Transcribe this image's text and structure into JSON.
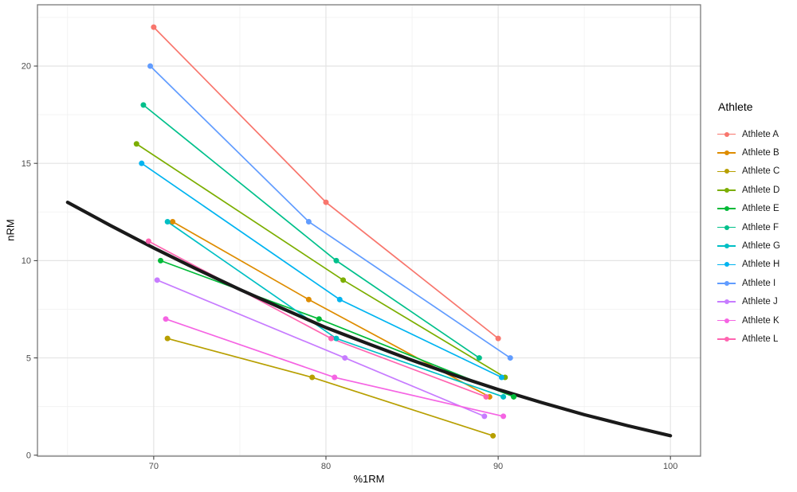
{
  "chart_data": {
    "type": "scatter",
    "title": "",
    "xlabel": "%1RM",
    "ylabel": "nRM",
    "legend_title": "Athlete",
    "legend_position": "right",
    "grid": true,
    "xlim": [
      63.25,
      101.75
    ],
    "ylim": [
      -0.05,
      23.15
    ],
    "x_ticks": [
      70,
      80,
      90,
      100
    ],
    "x_minor_ticks": [
      65,
      75,
      85,
      95
    ],
    "y_ticks": [
      0,
      5,
      10,
      15,
      20
    ],
    "y_minor_ticks": [
      2.5,
      7.5,
      12.5,
      17.5,
      22.5
    ],
    "series": [
      {
        "name": "Athlete A",
        "color": "#F8766D",
        "points": [
          [
            70.0,
            22
          ],
          [
            80.0,
            13
          ],
          [
            90.0,
            6
          ]
        ]
      },
      {
        "name": "Athlete B",
        "color": "#DE8C00",
        "points": [
          [
            71.1,
            12
          ],
          [
            79.0,
            8
          ],
          [
            89.5,
            3
          ]
        ]
      },
      {
        "name": "Athlete C",
        "color": "#B79F00",
        "points": [
          [
            70.8,
            6
          ],
          [
            79.2,
            4
          ],
          [
            89.7,
            1
          ]
        ]
      },
      {
        "name": "Athlete D",
        "color": "#7CAE00",
        "points": [
          [
            69.0,
            16
          ],
          [
            81.0,
            9
          ],
          [
            90.4,
            4
          ]
        ]
      },
      {
        "name": "Athlete E",
        "color": "#00BA38",
        "points": [
          [
            70.4,
            10
          ],
          [
            79.6,
            7
          ],
          [
            90.9,
            3
          ]
        ]
      },
      {
        "name": "Athlete F",
        "color": "#00C08B",
        "points": [
          [
            69.4,
            18
          ],
          [
            80.6,
            10
          ],
          [
            88.9,
            5
          ]
        ]
      },
      {
        "name": "Athlete G",
        "color": "#00BFC4",
        "points": [
          [
            70.8,
            12
          ],
          [
            80.6,
            6
          ],
          [
            90.3,
            3
          ]
        ]
      },
      {
        "name": "Athlete H",
        "color": "#00B4F0",
        "points": [
          [
            69.3,
            15
          ],
          [
            80.8,
            8
          ],
          [
            90.2,
            4
          ]
        ]
      },
      {
        "name": "Athlete I",
        "color": "#619CFF",
        "points": [
          [
            69.8,
            20
          ],
          [
            79.0,
            12
          ],
          [
            90.7,
            5
          ]
        ]
      },
      {
        "name": "Athlete J",
        "color": "#C77CFF",
        "points": [
          [
            70.2,
            9
          ],
          [
            81.1,
            5
          ],
          [
            89.2,
            2
          ]
        ]
      },
      {
        "name": "Athlete K",
        "color": "#F564E3",
        "points": [
          [
            70.7,
            7
          ],
          [
            80.5,
            4
          ],
          [
            90.3,
            2
          ]
        ]
      },
      {
        "name": "Athlete L",
        "color": "#FF64B0",
        "points": [
          [
            69.7,
            11
          ],
          [
            80.3,
            6
          ],
          [
            89.3,
            3
          ]
        ]
      }
    ],
    "trend_curve": {
      "name": "rep-max-prediction-curve",
      "color": "#1A1A1A",
      "points": [
        [
          65,
          13.0
        ],
        [
          67.5,
          11.8
        ],
        [
          70,
          10.65
        ],
        [
          72.5,
          9.56
        ],
        [
          75,
          8.52
        ],
        [
          77.5,
          7.53
        ],
        [
          80,
          6.56
        ],
        [
          82.5,
          5.71
        ],
        [
          85,
          4.88
        ],
        [
          87.5,
          4.1
        ],
        [
          90,
          3.38
        ],
        [
          92.5,
          2.71
        ],
        [
          95,
          2.08
        ],
        [
          97.5,
          1.52
        ],
        [
          100,
          1.0
        ]
      ]
    },
    "colors": {
      "background": "#FFFFFF",
      "grid_major": "#E4E4E4",
      "grid_minor": "#F0F0F0",
      "panel_border": "#7A7A7A",
      "tick_mark": "#333333",
      "tick_label": "#4D4D4D",
      "axis_title": "#000000",
      "trend": "#1A1A1A"
    }
  }
}
